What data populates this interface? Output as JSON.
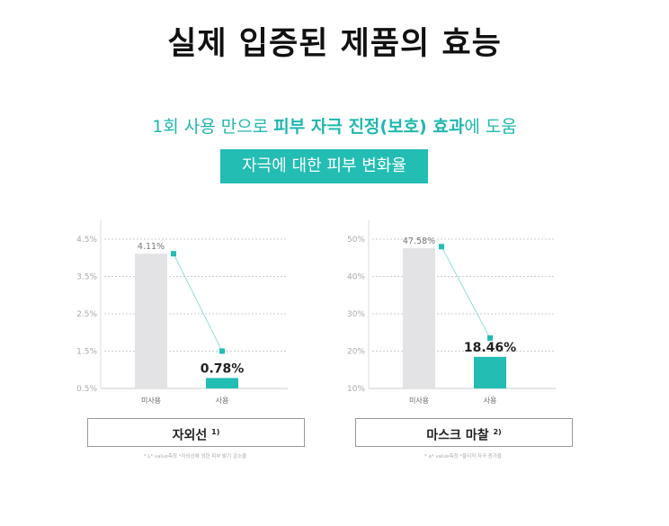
{
  "header": {
    "title": "실제 입증된 제품의 효능",
    "subtitle_pre": "1회 사용 만으로 ",
    "subtitle_bold1": "피부 자극 진정(보호) 효과",
    "subtitle_post": "에 도움",
    "badge": "자극에 대한 피부 변화율"
  },
  "colors": {
    "accent": "#23bdb3",
    "bar_unused": "#e3e3e5",
    "line": "#8fe0da"
  },
  "chart_data": [
    {
      "type": "bar",
      "title": "자외선",
      "footnote_mark": "1)",
      "footnote": "* L* value측정 *자외선에 의한 피부 밝기 감소율",
      "categories": [
        "미사용",
        "사용"
      ],
      "values": [
        4.11,
        0.78
      ],
      "data_labels": [
        "4.11%",
        "0.78%"
      ],
      "ylim": [
        0.5,
        4.5
      ],
      "yticks": [
        0.5,
        1.5,
        2.5,
        3.5,
        4.5
      ],
      "ytick_labels": [
        "0.5%",
        "1.5%",
        "2.5%",
        "3.5%",
        "4.5%"
      ],
      "grid": true,
      "marker_line": [
        4.11,
        1.5
      ]
    },
    {
      "type": "bar",
      "title": "마스크 마찰",
      "footnote_mark": "2)",
      "footnote": "* a* value측정 *물리적 자극 증가율",
      "categories": [
        "미사용",
        "사용"
      ],
      "values": [
        47.58,
        18.46
      ],
      "data_labels": [
        "47.58%",
        "18.46%"
      ],
      "ylim": [
        10,
        50
      ],
      "yticks": [
        10,
        20,
        30,
        40,
        50
      ],
      "ytick_labels": [
        "10%",
        "20%",
        "30%",
        "40%",
        "50%"
      ],
      "grid": true,
      "marker_line": [
        48,
        23.5
      ]
    }
  ]
}
